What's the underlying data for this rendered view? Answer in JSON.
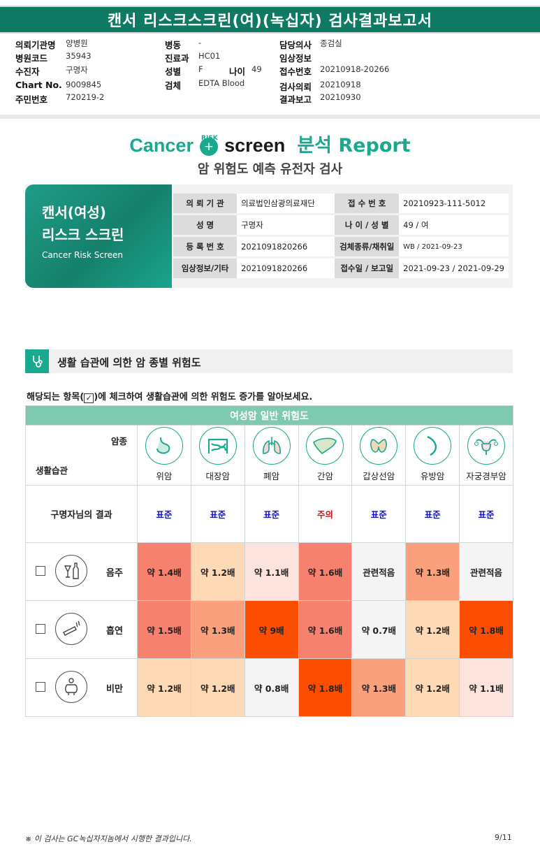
{
  "header": {
    "title": "캔서 리스크스크린(여)(녹십자) 검사결과보고서"
  },
  "info": {
    "col1": [
      {
        "label": "의뢰기관명",
        "value": "양병원"
      },
      {
        "label": "병원코드",
        "value": "35943"
      },
      {
        "label": "수진자",
        "value": "구명자"
      },
      {
        "label": "Chart No.",
        "value": "9009845"
      },
      {
        "label": "주민번호",
        "value": "720219-2"
      }
    ],
    "col2": [
      {
        "label": "병동",
        "value": "-"
      },
      {
        "label": "진료과",
        "value": "HC01"
      },
      {
        "label": "성별",
        "value": "F"
      },
      {
        "label": "검체",
        "value": "EDTA Blood"
      }
    ],
    "age": {
      "label": "나이",
      "value": "49"
    },
    "col3": [
      {
        "label": "담당의사",
        "value": "종검실"
      },
      {
        "label": "임상정보",
        "value": ""
      },
      {
        "label": "접수번호",
        "value": "20210918-20266"
      },
      {
        "label": "검사의뢰",
        "value": "20210918"
      },
      {
        "label": "결과보고",
        "value": "20210930"
      }
    ]
  },
  "logo": {
    "cancer": "Cancer",
    "risk": "RISK",
    "screen": "screen",
    "analysis": "분석 Report"
  },
  "subtitle": "암 위험도 예측 유전자 검사",
  "card": {
    "title1": "캔서(여성)",
    "title2": "리스크 스크린",
    "title_en": "Cancer Risk Screen",
    "rows": [
      {
        "l1": "의 뢰 기 관",
        "v1": "의료법인삼광의료재단",
        "l2": "접 수 번 호",
        "v2": "20210923-111-5012"
      },
      {
        "l1": "성 명",
        "v1": "구명자",
        "l2": "나 이 / 성 별",
        "v2": "49 / 여"
      },
      {
        "l1": "등 록 번 호",
        "v1": "2021091820266",
        "l2": "검체종류/채취일",
        "v2": "WB / 2021-09-23"
      },
      {
        "l1": "임상정보/기타",
        "v1": "2021091820266",
        "l2": "접수일 / 보고일",
        "v2": "2021-09-23 / 2021-09-29"
      }
    ]
  },
  "section": {
    "title": "생활 습관에 의한 암 종별 위험도",
    "note_pre": "해당되는 항목(",
    "note_check": "✓",
    "note_post": ")에 체크하여 생활습관에 의한 위험도 증가를 알아보세요."
  },
  "table": {
    "banner": "여성암 일반 위험도",
    "corner_top": "암종",
    "corner_bottom": "생활습관",
    "cancers": [
      {
        "name": "위암",
        "icon": "stomach-icon"
      },
      {
        "name": "대장암",
        "icon": "colon-icon"
      },
      {
        "name": "폐암",
        "icon": "lung-icon"
      },
      {
        "name": "간암",
        "icon": "liver-icon"
      },
      {
        "name": "갑상선암",
        "icon": "thyroid-icon"
      },
      {
        "name": "유방암",
        "icon": "breast-icon"
      },
      {
        "name": "자궁경부암",
        "icon": "uterus-icon"
      }
    ],
    "result_label": "구명자님의 결과",
    "results": [
      "표준",
      "표준",
      "표준",
      "주의",
      "표준",
      "표준",
      "표준"
    ],
    "habits": [
      {
        "name": "음주",
        "icon": "alcohol-icon",
        "values": [
          "약 1.4배",
          "약 1.2배",
          "약 1.1배",
          "약 1.6배",
          "관련적음",
          "약 1.3배",
          "관련적음"
        ]
      },
      {
        "name": "흡연",
        "icon": "smoking-icon",
        "values": [
          "약 1.5배",
          "약 1.3배",
          "약 9배",
          "약 1.6배",
          "약 0.7배",
          "약 1.2배",
          "약 1.8배"
        ]
      },
      {
        "name": "비만",
        "icon": "obesity-icon",
        "values": [
          "약 1.2배",
          "약 1.2배",
          "약 0.8배",
          "약 1.8배",
          "약 1.3배",
          "약 1.2배",
          "약 1.1배"
        ]
      }
    ]
  },
  "footer": {
    "note": "※ 이 검사는 GC녹십자지놈에서 시행한 결과입니다.",
    "page": "9/11"
  }
}
